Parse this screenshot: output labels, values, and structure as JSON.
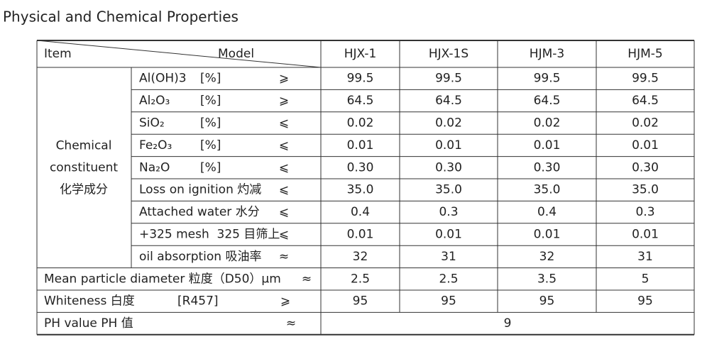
{
  "title": "Physical and Chemical Properties",
  "table": {
    "header": {
      "item": "Item",
      "model": "Model",
      "columns": [
        "HJX-1",
        "HJX-1S",
        "HJM-3",
        "HJM-5"
      ]
    },
    "group_label": [
      "Chemical",
      "constituent",
      "化学成分"
    ],
    "rows": [
      {
        "name": "Al(OH)3",
        "unit": "[%]",
        "sign": "⩾",
        "values": [
          "99.5",
          "99.5",
          "99.5",
          "99.5"
        ]
      },
      {
        "name": "Al₂O₃",
        "unit": "[%]",
        "sign": "⩾",
        "values": [
          "64.5",
          "64.5",
          "64.5",
          "64.5"
        ]
      },
      {
        "name": "SiO₂",
        "unit": "[%]",
        "sign": "⩽",
        "values": [
          "0.02",
          "0.02",
          "0.02",
          "0.02"
        ]
      },
      {
        "name": "Fe₂O₃",
        "unit": "[%]",
        "sign": "⩽",
        "values": [
          "0.01",
          "0.01",
          "0.01",
          "0.01"
        ]
      },
      {
        "name": "Na₂O",
        "unit": "[%]",
        "sign": "⩽",
        "values": [
          "0.30",
          "0.30",
          "0.30",
          "0.30"
        ]
      },
      {
        "name": "Loss on ignition 灼减",
        "sign": "⩽",
        "values": [
          "35.0",
          "35.0",
          "35.0",
          "35.0"
        ]
      },
      {
        "name": "Attached water 水分",
        "sign": "⩽",
        "values": [
          "0.4",
          "0.3",
          "0.4",
          "0.3"
        ]
      },
      {
        "name": "+325 mesh  325 目筛上",
        "sign": "⩽",
        "values": [
          "0.01",
          "0.01",
          "0.01",
          "0.01"
        ]
      },
      {
        "name": "oil absorption 吸油率",
        "sign": "≈",
        "values": [
          "32",
          "31",
          "32",
          "31"
        ]
      }
    ],
    "other_rows": [
      {
        "name": "Mean particle diameter 粒度（D50）μm",
        "sign": "≈",
        "values": [
          "2.5",
          "2.5",
          "3.5",
          "5"
        ]
      },
      {
        "name": "Whiteness 白度",
        "unit": "[R457]",
        "sign": "⩾",
        "values": [
          "95",
          "95",
          "95",
          "95"
        ]
      }
    ],
    "ph_row": {
      "name": "PH value PH 值",
      "sign": "≈",
      "value": "9"
    }
  }
}
